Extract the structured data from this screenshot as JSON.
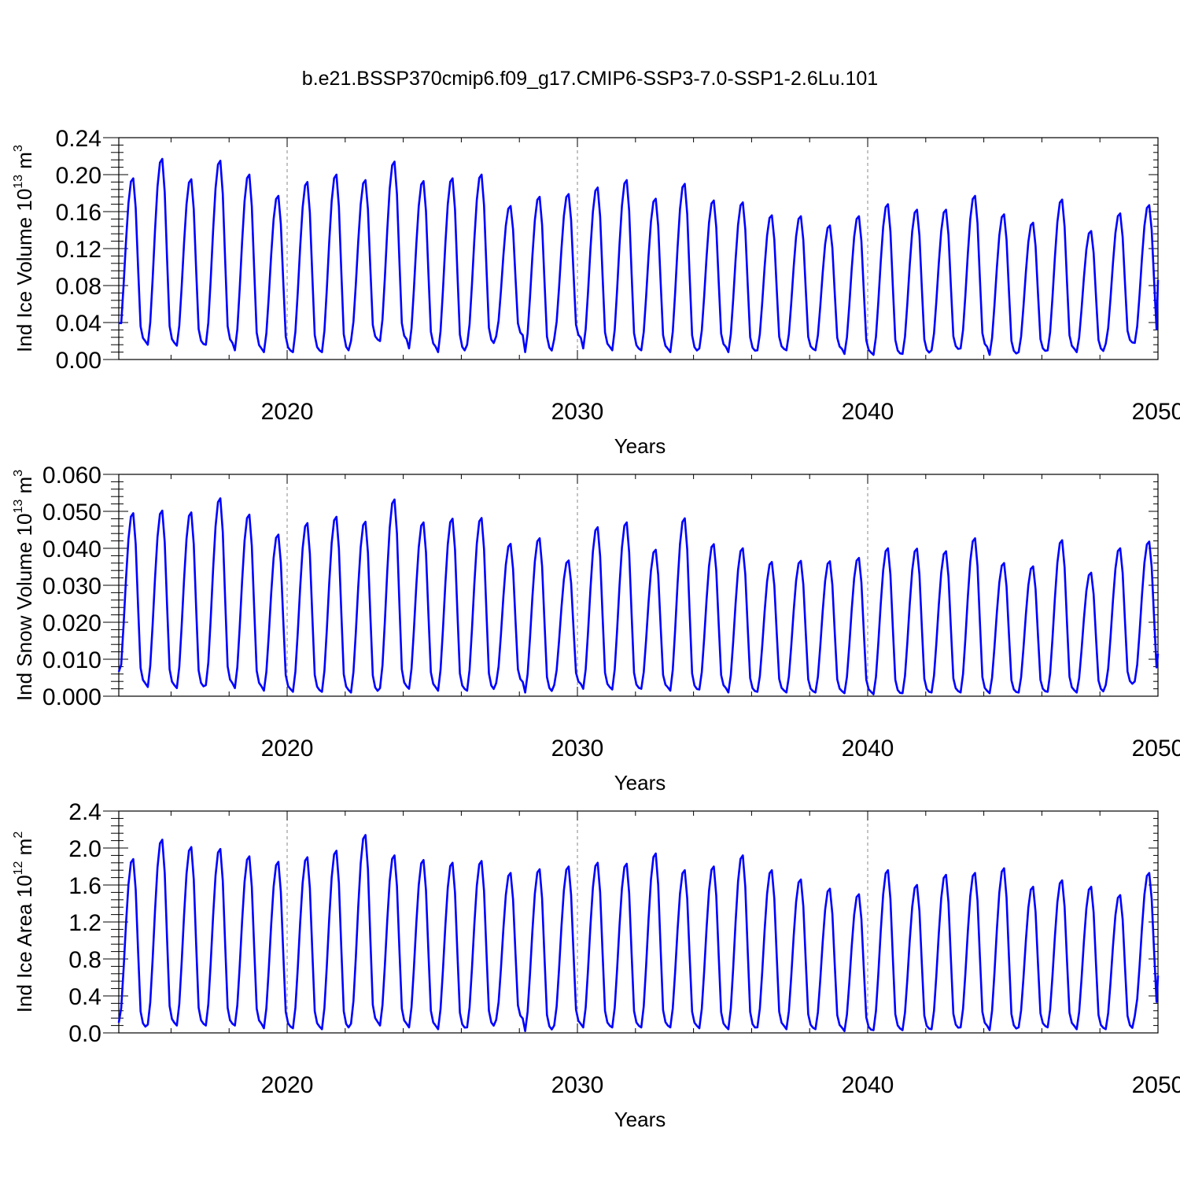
{
  "title": "b.e21.BSSP370cmip6.f09_g17.CMIP6-SSP3-7.0-SSP1-2.6Lu.101",
  "colors": {
    "line": "#0000ff",
    "axis": "#000000",
    "grid": "#888888"
  },
  "chart_data": [
    {
      "type": "line",
      "ylabel": "Ind Ice Volume 10",
      "ylabel_sup": "13",
      "ylabel_unit": "m",
      "ylabel_unit_sup": "3",
      "xlabel": "Years",
      "xlim": [
        2014.2,
        2050.0
      ],
      "ylim": [
        0,
        0.24
      ],
      "yticks": [
        "0.00",
        "0.04",
        "0.08",
        "0.12",
        "0.16",
        "0.20",
        "0.24"
      ],
      "xticks": [
        "2020",
        "2030",
        "2040",
        "2050"
      ],
      "x_start": 2014.2,
      "annual_peaks": [
        0.196,
        0.217,
        0.195,
        0.215,
        0.2,
        0.177,
        0.192,
        0.2,
        0.194,
        0.214,
        0.193,
        0.196,
        0.2,
        0.166,
        0.176,
        0.179,
        0.186,
        0.194,
        0.174,
        0.19,
        0.172,
        0.17,
        0.156,
        0.155,
        0.145,
        0.155,
        0.168,
        0.162,
        0.162,
        0.177,
        0.157,
        0.148,
        0.173,
        0.139,
        0.158,
        0.167
      ],
      "annual_mins": [
        0.018,
        0.016,
        0.015,
        0.016,
        0.01,
        0.008,
        0.008,
        0.008,
        0.02,
        0.02,
        0.012,
        0.008,
        0.016,
        0.025,
        0.008,
        0.022,
        0.012,
        0.01,
        0.01,
        0.008,
        0.012,
        0.008,
        0.01,
        0.01,
        0.01,
        0.006,
        0.005,
        0.006,
        0.01,
        0.012,
        0.005,
        0.008,
        0.01,
        0.008,
        0.017,
        0.018
      ],
      "end_value": 0.086
    },
    {
      "type": "line",
      "ylabel": "Ind Snow Volume 10",
      "ylabel_sup": "13",
      "ylabel_unit": "m",
      "ylabel_unit_sup": "3",
      "xlabel": "Years",
      "xlim": [
        2014.2,
        2050.0
      ],
      "ylim": [
        0,
        0.06
      ],
      "yticks": [
        "0.000",
        "0.010",
        "0.020",
        "0.030",
        "0.040",
        "0.050",
        "0.060"
      ],
      "xticks": [
        "2020",
        "2030",
        "2040",
        "2050"
      ],
      "x_start": 2014.2,
      "annual_peaks": [
        0.0495,
        0.0502,
        0.0497,
        0.0535,
        0.0491,
        0.0437,
        0.0468,
        0.0485,
        0.0472,
        0.0532,
        0.047,
        0.048,
        0.0482,
        0.0412,
        0.0427,
        0.0367,
        0.0457,
        0.047,
        0.0396,
        0.0481,
        0.0411,
        0.04,
        0.0363,
        0.0366,
        0.0365,
        0.0374,
        0.04,
        0.0399,
        0.0392,
        0.0427,
        0.036,
        0.0351,
        0.0422,
        0.0334,
        0.04,
        0.0418
      ],
      "annual_mins": [
        0.003,
        0.0025,
        0.0022,
        0.003,
        0.0022,
        0.0015,
        0.0012,
        0.0012,
        0.001,
        0.0022,
        0.002,
        0.0015,
        0.0015,
        0.0035,
        0.001,
        0.003,
        0.002,
        0.0018,
        0.002,
        0.0015,
        0.0018,
        0.001,
        0.0012,
        0.001,
        0.001,
        0.0008,
        0.0005,
        0.0008,
        0.001,
        0.001,
        0.0008,
        0.001,
        0.0012,
        0.001,
        0.003,
        0.004
      ],
      "end_value": 0.0115
    },
    {
      "type": "line",
      "ylabel": "Ind Ice Area 10",
      "ylabel_sup": "12",
      "ylabel_unit": "m",
      "ylabel_unit_sup": "2",
      "xlabel": "Years",
      "xlim": [
        2014.2,
        2050.0
      ],
      "ylim": [
        0,
        2.4
      ],
      "yticks": [
        "0.0",
        "0.4",
        "0.8",
        "1.2",
        "1.6",
        "2.0",
        "2.4"
      ],
      "xticks": [
        "2020",
        "2030",
        "2040",
        "2050"
      ],
      "x_start": 2014.2,
      "annual_peaks": [
        1.88,
        2.09,
        2.01,
        1.99,
        1.91,
        1.85,
        1.9,
        1.97,
        2.14,
        1.92,
        1.87,
        1.84,
        1.86,
        1.73,
        1.77,
        1.8,
        1.84,
        1.83,
        1.94,
        1.76,
        1.8,
        1.92,
        1.76,
        1.66,
        1.56,
        1.5,
        1.76,
        1.6,
        1.71,
        1.73,
        1.78,
        1.58,
        1.65,
        1.58,
        1.49,
        1.73
      ],
      "annual_mins": [
        0.05,
        0.09,
        0.08,
        0.08,
        0.08,
        0.05,
        0.05,
        0.04,
        0.1,
        0.08,
        0.06,
        0.04,
        0.06,
        0.14,
        0.02,
        0.08,
        0.06,
        0.06,
        0.06,
        0.06,
        0.05,
        0.04,
        0.06,
        0.04,
        0.04,
        0.02,
        0.03,
        0.03,
        0.04,
        0.06,
        0.03,
        0.06,
        0.06,
        0.04,
        0.04,
        0.18
      ],
      "end_value": 0.62
    }
  ]
}
